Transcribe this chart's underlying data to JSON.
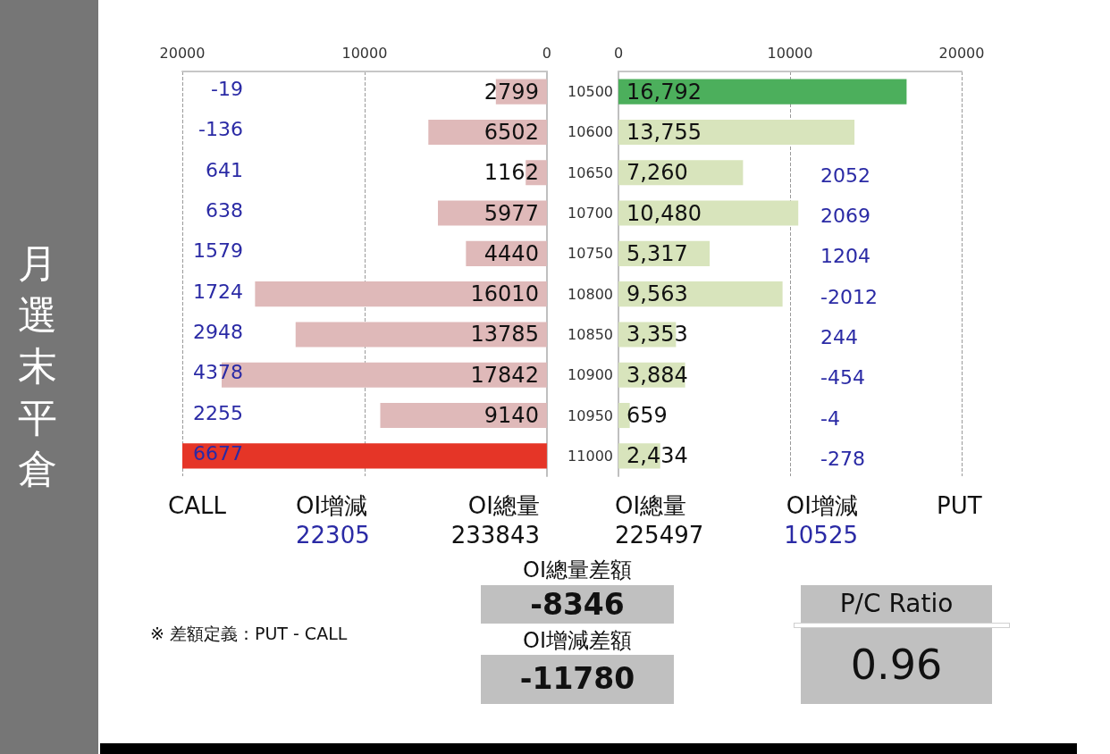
{
  "chart_data": [
    {
      "type": "bar",
      "orientation": "horizontal",
      "title": "月選末平倉",
      "categories": [
        "10500",
        "10600",
        "10650",
        "10700",
        "10750",
        "10800",
        "10850",
        "10900",
        "10950",
        "11000"
      ],
      "values": [
        2799,
        6502,
        1162,
        5977,
        4440,
        16010,
        13785,
        17842,
        9140,
        20000
      ],
      "colors": [
        "#dfb9b9",
        "#dfb9b9",
        "#dfb9b9",
        "#dfb9b9",
        "#dfb9b9",
        "#dfb9b9",
        "#dfb9b9",
        "#dfb9b9",
        "#dfb9b9",
        "#e53527"
      ],
      "value_labels": [
        "2799",
        "6502",
        "1162",
        "5977",
        "4440",
        "16010",
        "13785",
        "17842",
        "9140",
        null
      ],
      "xlim": [
        20000,
        0
      ],
      "xticks": [
        0,
        10000,
        20000
      ],
      "grid": "x",
      "tick_labels": "x",
      "annotations": [
        "-19",
        "-136",
        "641",
        "638",
        "1579",
        "1724",
        "2948",
        "4378",
        "2255",
        "6677",
        "CALL",
        "OI增減",
        "22305",
        "OI總量",
        "233843"
      ]
    },
    {
      "type": "bar",
      "orientation": "horizontal",
      "categories": [
        "10500",
        "10600",
        "10650",
        "10700",
        "10750",
        "10800",
        "10850",
        "10900",
        "10950",
        "11000"
      ],
      "values": [
        16792,
        13755,
        7260,
        10480,
        5317,
        9563,
        3353,
        3884,
        659,
        2434
      ],
      "colors": [
        "#4caf5c",
        "#d8e4bc",
        "#d8e4bc",
        "#d8e4bc",
        "#d8e4bc",
        "#d8e4bc",
        "#d8e4bc",
        "#d8e4bc",
        "#d8e4bc",
        "#d8e4bc"
      ],
      "value_labels": [
        "16,792",
        "13,755",
        "7,260",
        "10,480",
        "5,317",
        "9,563",
        "3,353",
        "3,884",
        "659",
        "2,434"
      ],
      "xlim": [
        0,
        20000
      ],
      "xticks": [
        0,
        10000,
        20000
      ],
      "grid": "x",
      "annotations": [
        "2052",
        "2069",
        "1204",
        "-2012",
        "244",
        "-454",
        "-4",
        "-278",
        "OI總量",
        "225497",
        "OI增減",
        "10525",
        "PUT"
      ]
    },
    {
      "type": "other",
      "annotations": [
        "※ 差額定義：PUT - CALL",
        "OI總量差額",
        "-8346",
        "OI增減差額",
        "-11780",
        "P/C Ratio",
        "0.96"
      ]
    }
  ]
}
